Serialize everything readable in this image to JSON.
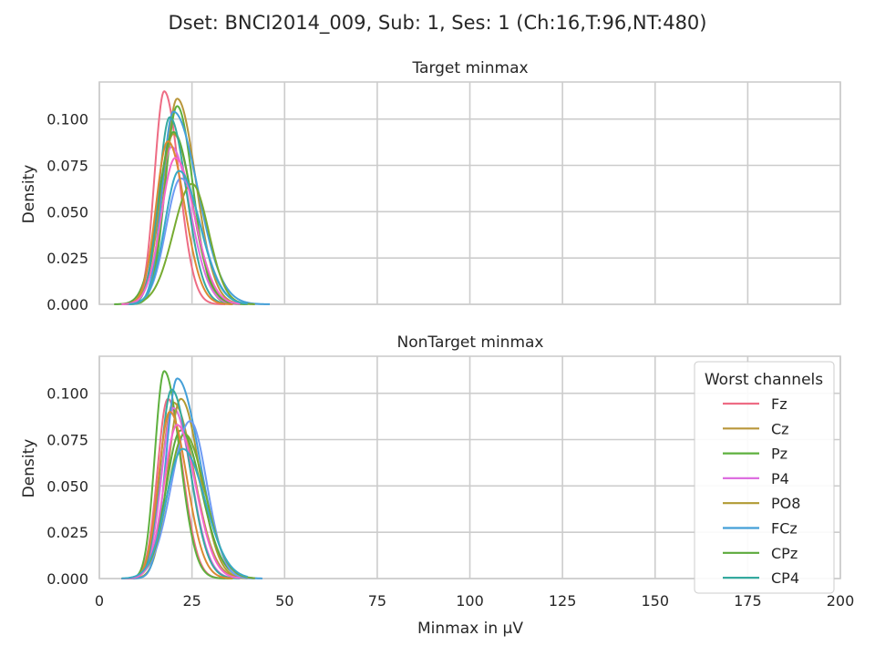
{
  "figure_title": "Dset: BNCI2014_009, Sub: 1, Ses: 1 (Ch:16,T:96,NT:480)",
  "xlabel": "Minmax in μV",
  "xlim": [
    0,
    200
  ],
  "x_ticks": [
    "0",
    "25",
    "50",
    "75",
    "100",
    "125",
    "150",
    "175",
    "200"
  ],
  "colors": {
    "grid": "#cccccc",
    "frame": "#cccccc",
    "text": "#262626",
    "others": [
      "#f77189",
      "#dc8932",
      "#ae9d31",
      "#77ab31",
      "#33b07a",
      "#36ada4",
      "#38a9c5",
      "#6e9bf4",
      "#cc7af4",
      "#f565cc"
    ]
  },
  "legend": {
    "title": "Worst channels",
    "location": "upper right (lower panel)",
    "entries": [
      {
        "name": "Fz",
        "color": "#ee6c84"
      },
      {
        "name": "Cz",
        "color": "#b9963a"
      },
      {
        "name": "Pz",
        "color": "#5eb03e"
      },
      {
        "name": "P4",
        "color": "#dd6fe0"
      },
      {
        "name": "PO8",
        "color": "#b09a33"
      },
      {
        "name": "FCz",
        "color": "#449fd8"
      },
      {
        "name": "CPz",
        "color": "#5ba93b"
      },
      {
        "name": "CP4",
        "color": "#35aa9f"
      }
    ]
  },
  "chart_data": [
    {
      "type": "line",
      "title": "Target minmax",
      "ylabel": "Density",
      "xlim": [
        0,
        200
      ],
      "ylim": [
        0,
        0.12
      ],
      "y_ticks": [
        "0.000",
        "0.025",
        "0.050",
        "0.075",
        "0.100"
      ],
      "grid": true,
      "series": [
        {
          "name": "Fz",
          "color": "#ee6c84",
          "peak_x": 17.5,
          "peak_y": 0.115,
          "sd_left": 2.6,
          "sd_right": 4.0,
          "x_min": 6,
          "x_max": 34
        },
        {
          "name": "Cz",
          "color": "#b9963a",
          "peak_x": 21,
          "peak_y": 0.111,
          "sd_left": 3.3,
          "sd_right": 5.0,
          "x_min": 8,
          "x_max": 40
        },
        {
          "name": "Pz",
          "color": "#5eb03e",
          "peak_x": 21,
          "peak_y": 0.107,
          "sd_left": 3.2,
          "sd_right": 4.2,
          "x_min": 8,
          "x_max": 36
        },
        {
          "name": "P4",
          "color": "#dd6fe0",
          "peak_x": 19.5,
          "peak_y": 0.085,
          "sd_left": 3.5,
          "sd_right": 5.0,
          "x_min": 6,
          "x_max": 38
        },
        {
          "name": "PO8",
          "color": "#b09a33",
          "peak_x": 20,
          "peak_y": 0.092,
          "sd_left": 3.6,
          "sd_right": 5.0,
          "x_min": 6,
          "x_max": 38
        },
        {
          "name": "FCz",
          "color": "#449fd8",
          "peak_x": 20,
          "peak_y": 0.104,
          "sd_left": 3.0,
          "sd_right": 6.5,
          "x_min": 7,
          "x_max": 46
        },
        {
          "name": "CPz",
          "color": "#5ba93b",
          "peak_x": 20,
          "peak_y": 0.093,
          "sd_left": 4.0,
          "sd_right": 5.0,
          "x_min": 4,
          "x_max": 40
        },
        {
          "name": "CP4",
          "color": "#35aa9f",
          "peak_x": 19,
          "peak_y": 0.101,
          "sd_left": 3.0,
          "sd_right": 4.5,
          "x_min": 6,
          "x_max": 36
        },
        {
          "name": "",
          "color": "#6e9bf4",
          "peak_x": 22,
          "peak_y": 0.068,
          "sd_left": 4.0,
          "sd_right": 5.5,
          "x_min": 8,
          "x_max": 42
        },
        {
          "name": "",
          "color": "#77ab31",
          "peak_x": 25,
          "peak_y": 0.065,
          "sd_left": 5.0,
          "sd_right": 4.5,
          "x_min": 8,
          "x_max": 42
        },
        {
          "name": "",
          "color": "#dc8932",
          "peak_x": 18.5,
          "peak_y": 0.088,
          "sd_left": 3.2,
          "sd_right": 4.5,
          "x_min": 6,
          "x_max": 36
        },
        {
          "name": "",
          "color": "#f565cc",
          "peak_x": 20.5,
          "peak_y": 0.079,
          "sd_left": 3.8,
          "sd_right": 5.2,
          "x_min": 6,
          "x_max": 38
        },
        {
          "name": "",
          "color": "#38a9c5",
          "peak_x": 21.5,
          "peak_y": 0.072,
          "sd_left": 3.8,
          "sd_right": 5.6,
          "x_min": 8,
          "x_max": 40
        }
      ]
    },
    {
      "type": "line",
      "title": "NonTarget minmax",
      "ylabel": "Density",
      "xlim": [
        0,
        200
      ],
      "ylim": [
        0,
        0.12
      ],
      "y_ticks": [
        "0.000",
        "0.025",
        "0.050",
        "0.075",
        "0.100"
      ],
      "grid": true,
      "series": [
        {
          "name": "Fz",
          "color": "#ee6c84",
          "peak_x": 18.5,
          "peak_y": 0.097,
          "sd_left": 2.8,
          "sd_right": 4.0,
          "x_min": 6,
          "x_max": 34
        },
        {
          "name": "Cz",
          "color": "#b9963a",
          "peak_x": 20,
          "peak_y": 0.095,
          "sd_left": 3.2,
          "sd_right": 5.5,
          "x_min": 6,
          "x_max": 40
        },
        {
          "name": "Pz",
          "color": "#5eb03e",
          "peak_x": 17.5,
          "peak_y": 0.112,
          "sd_left": 2.5,
          "sd_right": 4.2,
          "x_min": 6,
          "x_max": 36
        },
        {
          "name": "P4",
          "color": "#dd6fe0",
          "peak_x": 20,
          "peak_y": 0.092,
          "sd_left": 3.2,
          "sd_right": 4.8,
          "x_min": 6,
          "x_max": 36
        },
        {
          "name": "PO8",
          "color": "#b09a33",
          "peak_x": 22,
          "peak_y": 0.097,
          "sd_left": 3.5,
          "sd_right": 5.0,
          "x_min": 8,
          "x_max": 40
        },
        {
          "name": "FCz",
          "color": "#449fd8",
          "peak_x": 21,
          "peak_y": 0.108,
          "sd_left": 3.0,
          "sd_right": 6.0,
          "x_min": 7,
          "x_max": 44
        },
        {
          "name": "CPz",
          "color": "#5ba93b",
          "peak_x": 22,
          "peak_y": 0.08,
          "sd_left": 4.0,
          "sd_right": 5.5,
          "x_min": 6,
          "x_max": 42
        },
        {
          "name": "CP4",
          "color": "#35aa9f",
          "peak_x": 19.5,
          "peak_y": 0.102,
          "sd_left": 3.0,
          "sd_right": 4.8,
          "x_min": 6,
          "x_max": 38
        },
        {
          "name": "",
          "color": "#6e9bf4",
          "peak_x": 24.5,
          "peak_y": 0.085,
          "sd_left": 5.0,
          "sd_right": 4.5,
          "x_min": 8,
          "x_max": 42
        },
        {
          "name": "",
          "color": "#77ab31",
          "peak_x": 23,
          "peak_y": 0.078,
          "sd_left": 4.5,
          "sd_right": 5.5,
          "x_min": 8,
          "x_max": 42
        },
        {
          "name": "",
          "color": "#dc8932",
          "peak_x": 19,
          "peak_y": 0.09,
          "sd_left": 3.0,
          "sd_right": 4.6,
          "x_min": 6,
          "x_max": 36
        },
        {
          "name": "",
          "color": "#f565cc",
          "peak_x": 21,
          "peak_y": 0.083,
          "sd_left": 3.6,
          "sd_right": 5.0,
          "x_min": 6,
          "x_max": 38
        },
        {
          "name": "",
          "color": "#38a9c5",
          "peak_x": 22.5,
          "peak_y": 0.07,
          "sd_left": 4.5,
          "sd_right": 6.0,
          "x_min": 6,
          "x_max": 40
        }
      ]
    }
  ]
}
